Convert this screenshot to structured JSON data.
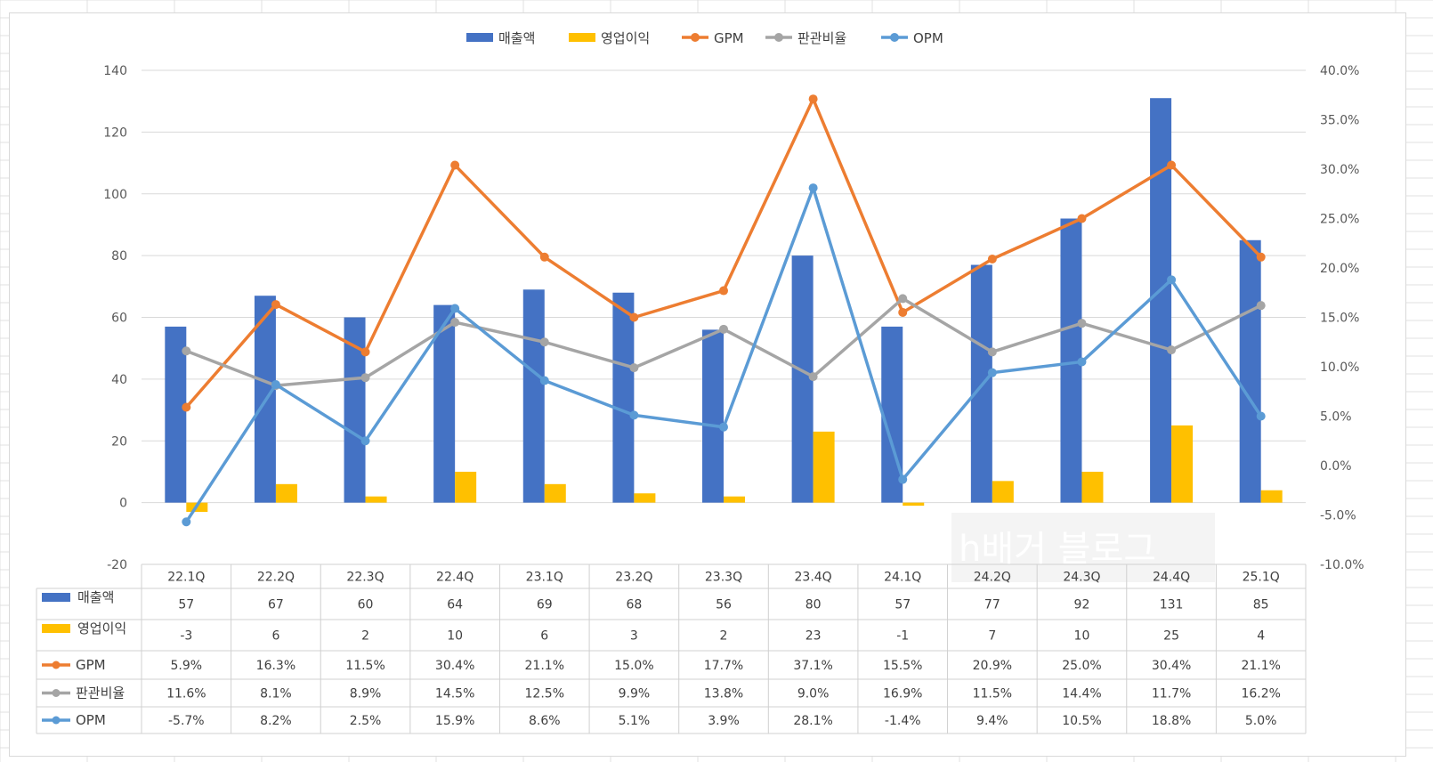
{
  "chart_data": {
    "type": "bar",
    "categories": [
      "22.1Q",
      "22.2Q",
      "22.3Q",
      "22.4Q",
      "23.1Q",
      "23.2Q",
      "23.3Q",
      "23.4Q",
      "24.1Q",
      "24.2Q",
      "24.3Q",
      "24.4Q",
      "25.1Q"
    ],
    "bar_series": [
      {
        "name": "매출액",
        "color": "#4472C4",
        "values": [
          57,
          67,
          60,
          64,
          69,
          68,
          56,
          80,
          57,
          77,
          92,
          131,
          85
        ]
      },
      {
        "name": "영업이익",
        "color": "#FFC000",
        "values": [
          -3,
          6,
          2,
          10,
          6,
          3,
          2,
          23,
          -1,
          7,
          10,
          25,
          4
        ]
      }
    ],
    "line_series": [
      {
        "name": "GPM",
        "color": "#ED7D31",
        "values": [
          5.9,
          16.3,
          11.5,
          30.4,
          21.1,
          15.0,
          17.7,
          37.1,
          15.5,
          20.9,
          25.0,
          30.4,
          21.1
        ],
        "labels": [
          "5.9%",
          "16.3%",
          "11.5%",
          "30.4%",
          "21.1%",
          "15.0%",
          "17.7%",
          "37.1%",
          "15.5%",
          "20.9%",
          "25.0%",
          "30.4%",
          "21.1%"
        ]
      },
      {
        "name": "판관비율",
        "color": "#A5A5A5",
        "values": [
          11.6,
          8.1,
          8.9,
          14.5,
          12.5,
          9.9,
          13.8,
          9.0,
          16.9,
          11.5,
          14.4,
          11.7,
          16.2
        ],
        "labels": [
          "11.6%",
          "8.1%",
          "8.9%",
          "14.5%",
          "12.5%",
          "9.9%",
          "13.8%",
          "9.0%",
          "16.9%",
          "11.5%",
          "14.4%",
          "11.7%",
          "16.2%"
        ]
      },
      {
        "name": "OPM",
        "color": "#5B9BD5",
        "values": [
          -5.7,
          8.2,
          2.5,
          15.9,
          8.6,
          5.1,
          3.9,
          28.1,
          -1.4,
          9.4,
          10.5,
          18.8,
          5.0
        ],
        "labels": [
          "-5.7%",
          "8.2%",
          "2.5%",
          "15.9%",
          "8.6%",
          "5.1%",
          "3.9%",
          "28.1%",
          "-1.4%",
          "9.4%",
          "10.5%",
          "18.8%",
          "5.0%"
        ]
      }
    ],
    "y_left": {
      "min": -20,
      "max": 140,
      "step": 20,
      "tick_labels": [
        "-20",
        "0",
        "20",
        "40",
        "60",
        "80",
        "100",
        "120",
        "140"
      ]
    },
    "y_right": {
      "min": -10,
      "max": 40,
      "step": 5,
      "tick_labels": [
        "-10.0%",
        "-5.0%",
        "0.0%",
        "5.0%",
        "10.0%",
        "15.0%",
        "20.0%",
        "25.0%",
        "30.0%",
        "35.0%",
        "40.0%"
      ]
    },
    "legend_position": "top-center",
    "data_table": true,
    "gridlines": true
  },
  "watermark": "h배거 블로그"
}
